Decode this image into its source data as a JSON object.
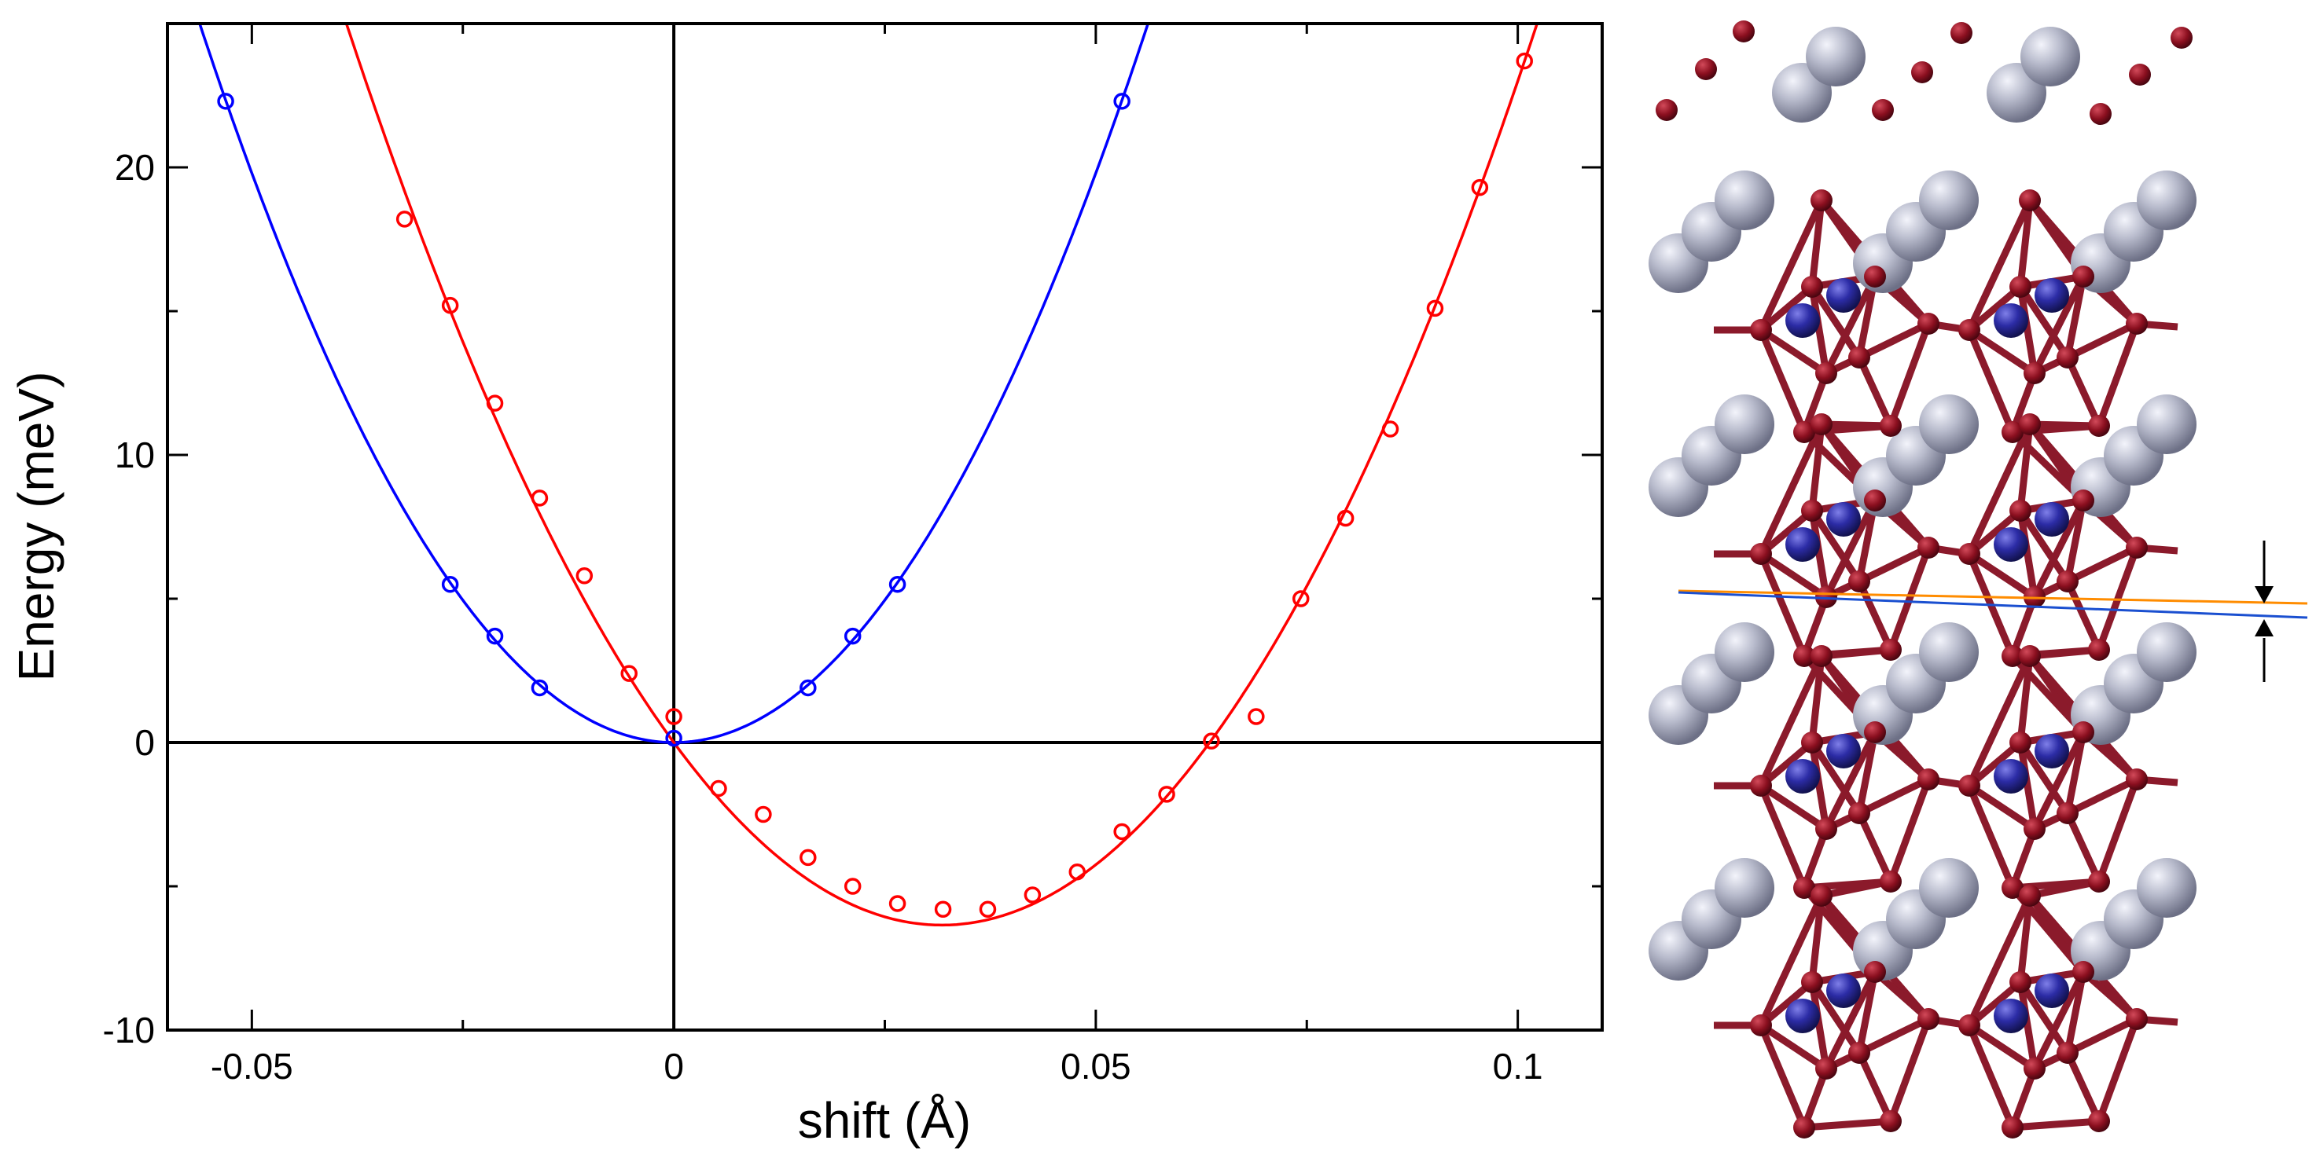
{
  "chart_data": {
    "type": "scatter",
    "xlabel": "shift (Å)",
    "ylabel": "Energy (meV)",
    "xlim": [
      -0.06,
      0.11
    ],
    "ylim": [
      -10,
      25
    ],
    "xticks": [
      {
        "value": -0.05,
        "label": "-0.05"
      },
      {
        "value": 0,
        "label": "0"
      },
      {
        "value": 0.05,
        "label": "0.05"
      },
      {
        "value": 0.1,
        "label": "0.1"
      }
    ],
    "yticks": [
      {
        "value": -10,
        "label": "-10"
      },
      {
        "value": 0,
        "label": "0"
      },
      {
        "value": 10,
        "label": "10"
      },
      {
        "value": 20,
        "label": "20"
      }
    ],
    "reference_lines": {
      "x": 0,
      "y": 0
    },
    "grid": false,
    "legend": "none",
    "series": [
      {
        "color": "#0000ff",
        "marker": "open-circle",
        "points": [
          [
            -0.0531,
            22.3
          ],
          [
            -0.0265,
            5.5
          ],
          [
            -0.0212,
            3.7
          ],
          [
            -0.0159,
            1.9
          ],
          [
            0.0,
            0.15
          ],
          [
            0.0159,
            1.9
          ],
          [
            0.0212,
            3.7
          ],
          [
            0.0265,
            5.5
          ],
          [
            0.0531,
            22.3
          ]
        ],
        "fit": {
          "form": "a*x^2 + b*x + c",
          "a": 7920,
          "b": 0,
          "c": 0
        }
      },
      {
        "color": "#ff0000",
        "marker": "open-circle",
        "points": [
          [
            -0.0319,
            18.2
          ],
          [
            -0.0265,
            15.2
          ],
          [
            -0.0212,
            11.8
          ],
          [
            -0.0159,
            8.5
          ],
          [
            -0.0106,
            5.8
          ],
          [
            -0.0053,
            2.4
          ],
          [
            0.0,
            0.9
          ],
          [
            0.0053,
            -1.6
          ],
          [
            0.0106,
            -2.5
          ],
          [
            0.0159,
            -4.0
          ],
          [
            0.0212,
            -5.0
          ],
          [
            0.0265,
            -5.6
          ],
          [
            0.0319,
            -5.8
          ],
          [
            0.0372,
            -5.8
          ],
          [
            0.0425,
            -5.3
          ],
          [
            0.0478,
            -4.5
          ],
          [
            0.0531,
            -3.1
          ],
          [
            0.0584,
            -1.8
          ],
          [
            0.0637,
            0.05
          ],
          [
            0.069,
            0.9
          ],
          [
            0.0743,
            5.0
          ],
          [
            0.0796,
            7.8
          ],
          [
            0.0849,
            10.9
          ],
          [
            0.0902,
            15.1
          ],
          [
            0.0955,
            19.3
          ],
          [
            0.1008,
            23.7
          ]
        ],
        "fit": {
          "form": "a*x^2 + b*x + c",
          "a": 6300,
          "b": -400,
          "c": 0
        }
      }
    ]
  },
  "structure_image": {
    "description_icon": "crystal-structure-icon",
    "colors": {
      "bond": "#8b1a2b",
      "oxygen": "#8b0f1f",
      "metal_center": "#2b2ba0",
      "cation": "#a9acbf",
      "marker_line_orange": "#ff8c00",
      "marker_line_blue": "#1a4fd0"
    }
  }
}
